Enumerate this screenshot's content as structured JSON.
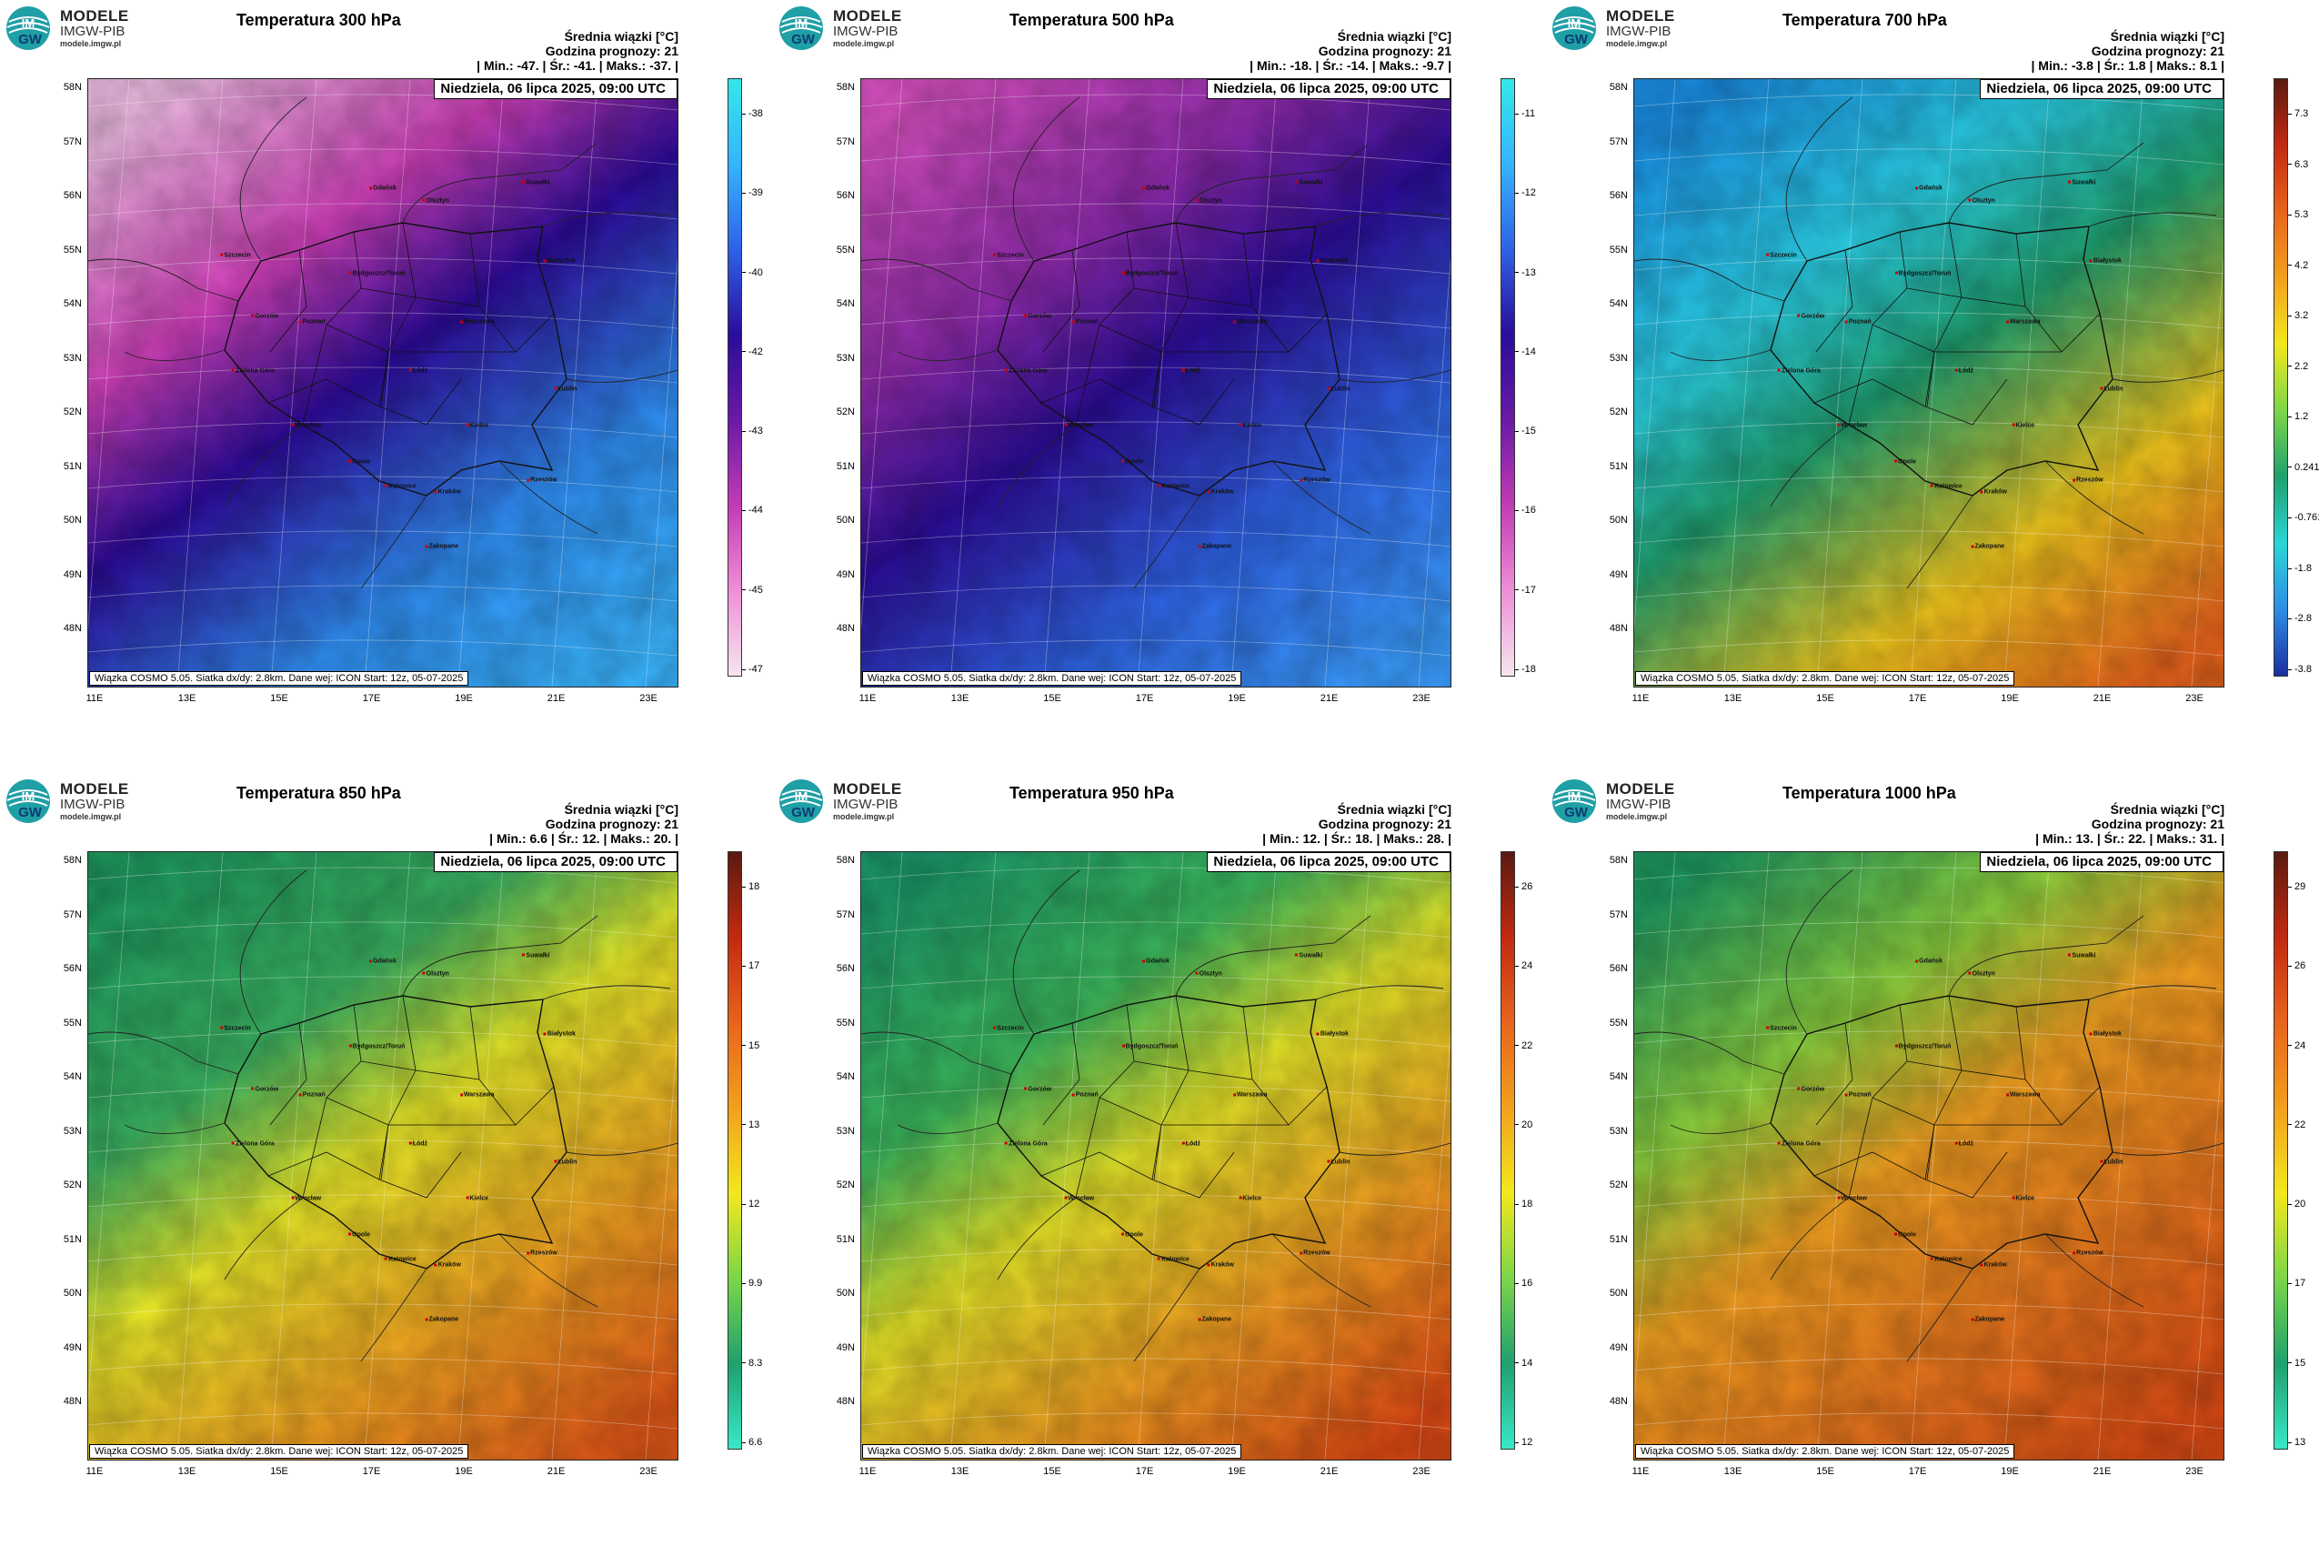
{
  "logo": {
    "mark_top": "IM",
    "mark_bottom": "GW",
    "line1": "MODELE",
    "line2": "IMGW-PIB",
    "line3": "modele.imgw.pl"
  },
  "common": {
    "stat_title": "Średnia wiązki [°C]",
    "forecast_hour": "Godzina prognozy: 21",
    "date_label": "Niedziela, 06 lipca 2025, 09:00 UTC",
    "info_label": "Wiązka COSMO 5.05. Siatka dx/dy: 2.8km. Dane wej: ICON Start: 12z, 05-07-2025",
    "lat_labels": [
      "58N",
      "57N",
      "56N",
      "55N",
      "54N",
      "53N",
      "52N",
      "51N",
      "50N",
      "49N",
      "48N"
    ],
    "lon_labels": [
      "11E",
      "13E",
      "15E",
      "17E",
      "19E",
      "21E",
      "23E"
    ]
  },
  "cities": [
    "Gdańsk",
    "Olsztyn",
    "Suwałki",
    "Szczecin",
    "Bydgoszcz/Toruń",
    "Białystok",
    "Gorzów",
    "Poznań",
    "Warszawa",
    "Zielona Góra",
    "Łódź",
    "Lublin",
    "Wrocław",
    "Kielce",
    "Opole",
    "Katowice",
    "Kraków",
    "Rzeszów",
    "Zakopane"
  ],
  "panels": [
    {
      "title": "Temperatura 300 hPa",
      "stats": "| Min.:    -47. | Śr.:    -41. | Maks.:    -37. |",
      "ticks": [
        "-38",
        "-39",
        "-40",
        "-42",
        "-43",
        "-44",
        "-45",
        "-47"
      ],
      "colors": {
        "north": "#f4c0e8",
        "mid": "#cf3fb9",
        "band": "#2c0a9a",
        "south": "#2f8df2",
        "edge": "#39b4ff"
      },
      "bar": [
        "#33e8e8",
        "#35b4ff",
        "#2e62e6",
        "#2a0d9a",
        "#6a1aa6",
        "#c23bb5",
        "#ef8ed6",
        "#f4e6ee"
      ]
    },
    {
      "title": "Temperatura 500 hPa",
      "stats": "| Min.:    -18. | Śr.:    -14. | Maks.:    -9.7 |",
      "ticks": [
        "-11",
        "-12",
        "-13",
        "-14",
        "-15",
        "-16",
        "-17",
        "-18"
      ],
      "colors": {
        "north": "#d64fc0",
        "mid": "#8f2aac",
        "band": "#2b0c98",
        "south": "#2f66e8",
        "edge": "#3a9cff"
      },
      "bar": [
        "#33e8e8",
        "#35b4ff",
        "#2e62e6",
        "#2a0d9a",
        "#6a1aa6",
        "#c23bb5",
        "#ef8ed6",
        "#f4e6ee"
      ]
    },
    {
      "title": "Temperatura 700 hPa",
      "stats": "| Min.:    -3.8 | Śr.:    1.8 | Maks.:    8.1 |",
      "ticks": [
        "7.3",
        "6.3",
        "5.3",
        "4.2",
        "3.2",
        "2.2",
        "1.2",
        "0.241",
        "-0.761",
        "-1.8",
        "-2.8",
        "-3.8"
      ],
      "colors": {
        "north": "#1a8fe6",
        "mid": "#2ad0e6",
        "band": "#1fa070",
        "south": "#f2c81c",
        "edge": "#e8641c"
      },
      "bar": [
        "#5a1a10",
        "#c22a10",
        "#e8641c",
        "#f2a01c",
        "#f2e81c",
        "#7cd648",
        "#1fa06e",
        "#2ad6d6",
        "#2e8ee6",
        "#1a2e9c"
      ]
    },
    {
      "title": "Temperatura 850 hPa",
      "stats": "| Min.:    6.6 | Śr.:    12. | Maks.:    20. |",
      "ticks": [
        "18",
        "17",
        "15",
        "13",
        "12",
        "9.9",
        "8.3",
        "6.6"
      ],
      "colors": {
        "north": "#1f9c60",
        "mid": "#3ab262",
        "band": "#e8e828",
        "south": "#f0a020",
        "edge": "#e05818"
      },
      "bar": [
        "#5a1a10",
        "#c22a10",
        "#e8641c",
        "#f2a01c",
        "#f2e81c",
        "#7cd648",
        "#1fa06e",
        "#38e8c8"
      ]
    },
    {
      "title": "Temperatura 950 hPa",
      "stats": "| Min.:    12. | Śr.:    18. | Maks.:    28. |",
      "ticks": [
        "26",
        "24",
        "22",
        "20",
        "18",
        "16",
        "14",
        "12"
      ],
      "colors": {
        "north": "#1c9a6a",
        "mid": "#3cb85c",
        "band": "#e4e428",
        "south": "#f09a20",
        "edge": "#dd4a14"
      },
      "bar": [
        "#5a1a10",
        "#c22a10",
        "#e8641c",
        "#f2a01c",
        "#f2e81c",
        "#7cd648",
        "#1fa06e",
        "#38e8c8"
      ]
    },
    {
      "title": "Temperatura 1000 hPa",
      "stats": "| Min.:    13. | Śr.:    22. | Maks.:    31. |",
      "ticks": [
        "29",
        "26",
        "24",
        "22",
        "20",
        "17",
        "15",
        "13"
      ],
      "colors": {
        "north": "#1f9c62",
        "mid": "#8ccf3c",
        "band": "#f0a020",
        "south": "#e8741c",
        "edge": "#d84a14"
      },
      "bar": [
        "#5a1a10",
        "#c22a10",
        "#e8641c",
        "#f2a01c",
        "#f2e81c",
        "#7cd648",
        "#1fa06e",
        "#38e8c8"
      ]
    }
  ]
}
